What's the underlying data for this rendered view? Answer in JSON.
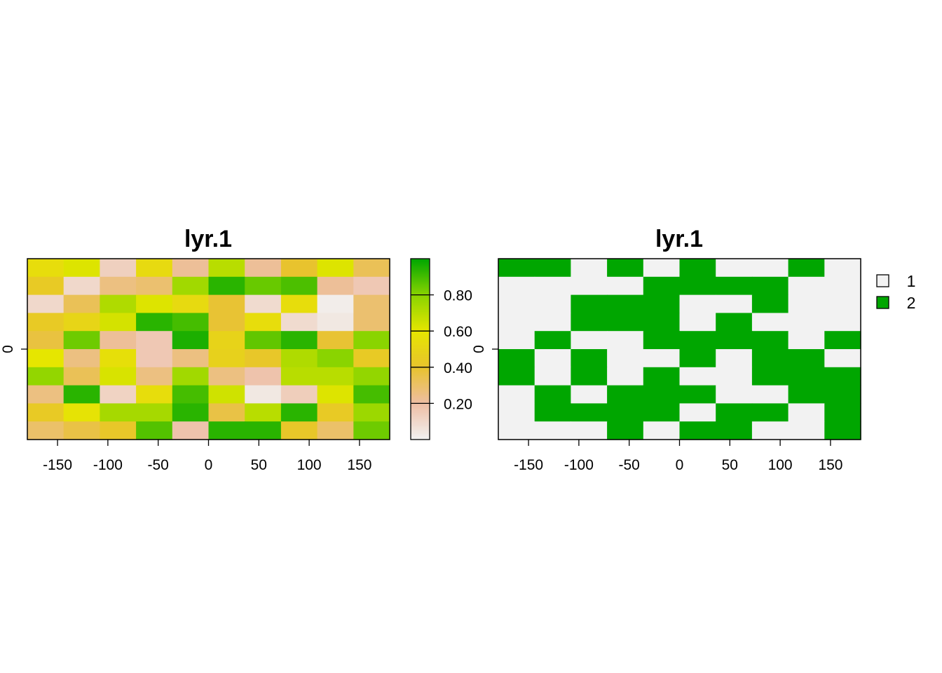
{
  "chart_data": [
    {
      "type": "heatmap",
      "title": "lyr.1",
      "xlim": [
        -180,
        180
      ],
      "x_ticks": [
        -150,
        -100,
        -50,
        0,
        50,
        100,
        150
      ],
      "x_tick_labels": [
        "-150",
        "-100",
        "-50",
        "0",
        "50",
        "100",
        "150"
      ],
      "y_ticks": [
        0
      ],
      "y_tick_labels": [
        "0"
      ],
      "legend": {
        "type": "continuous",
        "placement": "right",
        "range": [
          0,
          1
        ],
        "ticks": [
          0.2,
          0.4,
          0.6,
          0.8
        ],
        "tick_labels": [
          "0.20",
          "0.40",
          "0.60",
          "0.80"
        ],
        "colors": [
          "#F2F2F2",
          "#EEBEA4",
          "#E8C32E",
          "#E6E600",
          "#8AD400",
          "#00A600"
        ]
      },
      "grid": {
        "rows": 10,
        "cols": 10,
        "values": [
          [
            0.55,
            0.62,
            0.13,
            0.53,
            0.22,
            0.7,
            0.22,
            0.4,
            0.62,
            0.33
          ],
          [
            0.44,
            0.1,
            0.26,
            0.29,
            0.75,
            0.94,
            0.85,
            0.89,
            0.22,
            0.16
          ],
          [
            0.1,
            0.33,
            0.72,
            0.62,
            0.53,
            0.39,
            0.09,
            0.55,
            0.02,
            0.29
          ],
          [
            0.44,
            0.5,
            0.64,
            0.94,
            0.9,
            0.39,
            0.55,
            0.09,
            0.04,
            0.29
          ],
          [
            0.37,
            0.84,
            0.22,
            0.16,
            0.96,
            0.49,
            0.86,
            0.94,
            0.39,
            0.8
          ],
          [
            0.6,
            0.26,
            0.56,
            0.16,
            0.26,
            0.48,
            0.42,
            0.72,
            0.8,
            0.44
          ],
          [
            0.78,
            0.33,
            0.63,
            0.26,
            0.75,
            0.26,
            0.18,
            0.7,
            0.7,
            0.78
          ],
          [
            0.26,
            0.94,
            0.12,
            0.55,
            0.9,
            0.65,
            0.04,
            0.14,
            0.62,
            0.9
          ],
          [
            0.44,
            0.58,
            0.74,
            0.74,
            0.94,
            0.36,
            0.7,
            0.94,
            0.44,
            0.76
          ],
          [
            0.3,
            0.36,
            0.42,
            0.88,
            0.18,
            0.94,
            0.94,
            0.42,
            0.3,
            0.84
          ]
        ]
      }
    },
    {
      "type": "heatmap",
      "title": "lyr.1",
      "xlim": [
        -180,
        180
      ],
      "x_ticks": [
        -150,
        -100,
        -50,
        0,
        50,
        100,
        150
      ],
      "x_tick_labels": [
        "-150",
        "-100",
        "-50",
        "0",
        "50",
        "100",
        "150"
      ],
      "y_ticks": [
        0
      ],
      "y_tick_labels": [
        "0"
      ],
      "legend": {
        "type": "categorical",
        "placement": "right",
        "categories": [
          "1",
          "2"
        ],
        "colors": [
          "#F2F2F2",
          "#00A600"
        ]
      },
      "grid": {
        "rows": 10,
        "cols": 10,
        "values": [
          [
            2,
            2,
            1,
            2,
            1,
            2,
            1,
            1,
            2,
            1
          ],
          [
            1,
            1,
            1,
            1,
            2,
            2,
            2,
            2,
            1,
            1
          ],
          [
            1,
            1,
            2,
            2,
            2,
            1,
            1,
            2,
            1,
            1
          ],
          [
            1,
            1,
            2,
            2,
            2,
            1,
            2,
            1,
            1,
            1
          ],
          [
            1,
            2,
            1,
            1,
            2,
            2,
            2,
            2,
            1,
            2
          ],
          [
            2,
            1,
            2,
            1,
            1,
            2,
            1,
            2,
            2,
            1
          ],
          [
            2,
            1,
            2,
            1,
            2,
            1,
            1,
            2,
            2,
            2
          ],
          [
            1,
            2,
            1,
            2,
            2,
            2,
            1,
            1,
            2,
            2
          ],
          [
            1,
            2,
            2,
            2,
            2,
            1,
            2,
            2,
            1,
            2
          ],
          [
            1,
            1,
            1,
            2,
            1,
            2,
            2,
            1,
            1,
            2
          ]
        ]
      }
    }
  ]
}
